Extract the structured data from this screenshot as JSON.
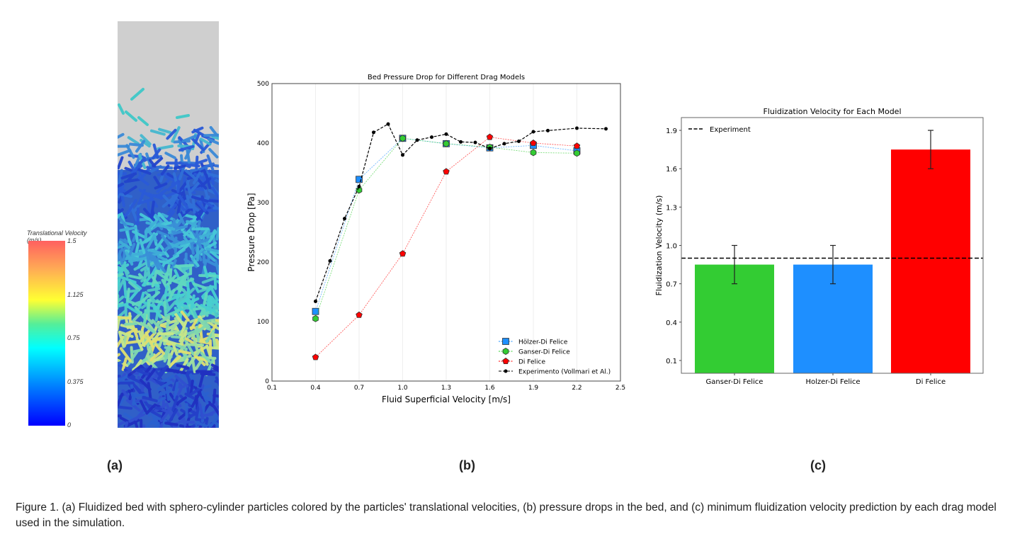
{
  "panel_a": {
    "label": "(a)",
    "colorbar": {
      "title_line1": "Translational Velocity",
      "title_line2": "(m/s)",
      "ticks": [
        "1.5",
        "1.125",
        "0.75",
        "0.375",
        "0"
      ]
    }
  },
  "panel_b_label": "(b)",
  "panel_c_label": "(c)",
  "caption": {
    "text": "Figure 1. (a) Fluidized bed with sphero-cylinder particles colored by the particles' translational velocities, (b) pressure drops in the bed, and (c) minimum fluidization velocity prediction by each drag model used in the simulation."
  },
  "chart_data": [
    {
      "type": "line",
      "title": "Bed Pressure Drop for Different Drag Models",
      "xlabel": "Fluid Superficial Velocity [m/s]",
      "ylabel": "Pressure Drop [Pa]",
      "xlim": [
        0.1,
        2.5
      ],
      "ylim": [
        0,
        500
      ],
      "xticks": [
        "0.1",
        "0.4",
        "0.7",
        "1.0",
        "1.3",
        "1.6",
        "1.9",
        "2.2",
        "2.5"
      ],
      "yticks": [
        "0",
        "100",
        "200",
        "300",
        "400",
        "500"
      ],
      "grid": "vertical",
      "legend_position": "bottom-right",
      "series": [
        {
          "name": "Hölzer-Di Felice",
          "color": "#1e8fff",
          "marker": "square",
          "x": [
            0.4,
            0.7,
            1.0,
            1.3,
            1.6,
            1.9,
            2.2
          ],
          "y": [
            117,
            339,
            408,
            399,
            392,
            396,
            387
          ]
        },
        {
          "name": "Ganser-Di Felice",
          "color": "#33cc33",
          "marker": "hexagon",
          "x": [
            0.4,
            0.7,
            1.0,
            1.3,
            1.6,
            1.9,
            2.2
          ],
          "y": [
            105,
            321,
            408,
            399,
            393,
            384,
            383
          ]
        },
        {
          "name": "Di Felice",
          "color": "#ff0000",
          "marker": "pentagon",
          "x": [
            0.4,
            0.7,
            1.0,
            1.3,
            1.6,
            1.9,
            2.2
          ],
          "y": [
            40,
            111,
            214,
            352,
            410,
            400,
            395
          ]
        },
        {
          "name": "Experimento (Vollmari et Al.)",
          "color": "#000000",
          "marker": "dot",
          "x": [
            0.4,
            0.5,
            0.6,
            0.7,
            0.8,
            0.9,
            1.0,
            1.1,
            1.2,
            1.3,
            1.4,
            1.5,
            1.6,
            1.7,
            1.8,
            1.9,
            2.0,
            2.2,
            2.4
          ],
          "y": [
            134,
            202,
            273,
            327,
            418,
            432,
            380,
            405,
            410,
            415,
            402,
            401,
            391,
            399,
            403,
            419,
            421,
            425,
            424
          ]
        }
      ]
    },
    {
      "type": "bar",
      "title": "Fluidization Velocity for Each Model",
      "xlabel": "",
      "ylabel": "Fluidization Velocity (m/s)",
      "ylim": [
        0,
        2.0
      ],
      "yticks": [
        "0.1",
        "0.4",
        "0.7",
        "1.0",
        "1.3",
        "1.6",
        "1.9"
      ],
      "categories": [
        "Ganser-Di Felice",
        "Holzer-Di Felice",
        "Di Felice"
      ],
      "values": [
        0.85,
        0.85,
        1.75
      ],
      "error_low": [
        0.7,
        0.7,
        1.6
      ],
      "error_high": [
        1.0,
        1.0,
        1.9
      ],
      "colors": [
        "#33cc33",
        "#1e8fff",
        "#ff0000"
      ],
      "reference_line": {
        "label": "Experiment",
        "value": 0.9
      },
      "legend_position": "top-left"
    }
  ]
}
